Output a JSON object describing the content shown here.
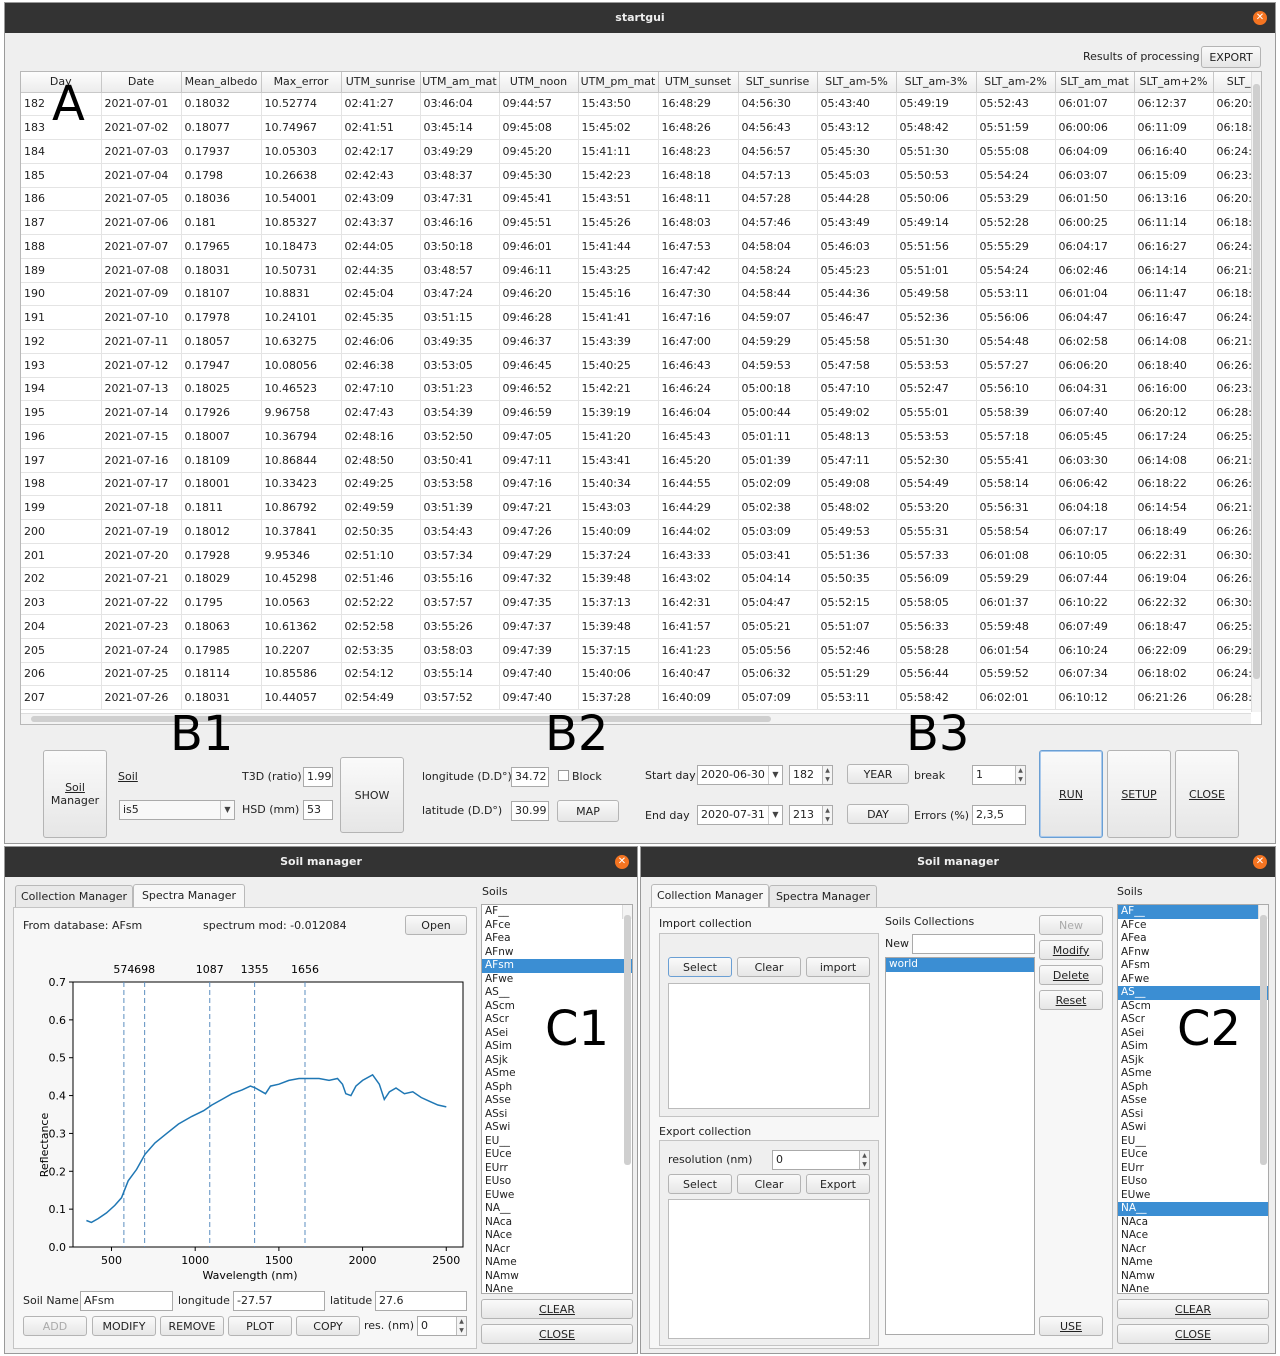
{
  "overlay_labels": {
    "a": "A",
    "b1": "B1",
    "b2": "B2",
    "b3": "B3",
    "c1": "C1",
    "c2": "C2"
  },
  "main": {
    "title": "startgui",
    "results_label": "Results of processing",
    "export_btn": "EXPORT",
    "columns": [
      "Day",
      "Date",
      "Mean_albedo",
      "Max_error",
      "UTM_sunrise",
      "UTM_am_mat",
      "UTM_noon",
      "UTM_pm_mat",
      "UTM_sunset",
      "SLT_sunrise",
      "SLT_am-5%",
      "SLT_am-3%",
      "SLT_am-2%",
      "SLT_am_mat",
      "SLT_am+2%",
      "SLT_a"
    ],
    "rows": [
      [
        "182",
        "2021-07-01",
        "0.18032",
        "10.52774",
        "02:41:27",
        "03:46:04",
        "09:44:57",
        "15:43:50",
        "16:48:29",
        "04:56:30",
        "05:43:40",
        "05:49:19",
        "05:52:43",
        "06:01:07",
        "06:12:37",
        "06:20:"
      ],
      [
        "183",
        "2021-07-02",
        "0.18077",
        "10.74967",
        "02:41:51",
        "03:45:14",
        "09:45:08",
        "15:45:02",
        "16:48:26",
        "04:56:43",
        "05:43:12",
        "05:48:42",
        "05:51:59",
        "06:00:06",
        "06:11:09",
        "06:18:"
      ],
      [
        "184",
        "2021-07-03",
        "0.17937",
        "10.05303",
        "02:42:17",
        "03:49:29",
        "09:45:20",
        "15:41:11",
        "16:48:23",
        "04:56:57",
        "05:45:30",
        "05:51:30",
        "05:55:08",
        "06:04:09",
        "06:16:40",
        "06:24:"
      ],
      [
        "185",
        "2021-07-04",
        "0.1798",
        "10.26638",
        "02:42:43",
        "03:48:37",
        "09:45:30",
        "15:42:23",
        "16:48:18",
        "04:57:13",
        "05:45:03",
        "05:50:53",
        "05:54:24",
        "06:03:07",
        "06:15:09",
        "06:23:"
      ],
      [
        "186",
        "2021-07-05",
        "0.18036",
        "10.54001",
        "02:43:09",
        "03:47:31",
        "09:45:41",
        "15:43:51",
        "16:48:11",
        "04:57:28",
        "05:44:28",
        "05:50:06",
        "05:53:29",
        "06:01:50",
        "06:13:16",
        "06:20:"
      ],
      [
        "187",
        "2021-07-06",
        "0.181",
        "10.85327",
        "02:43:37",
        "03:46:16",
        "09:45:51",
        "15:45:26",
        "16:48:03",
        "04:57:46",
        "05:43:49",
        "05:49:14",
        "05:52:28",
        "06:00:25",
        "06:11:14",
        "06:18:"
      ],
      [
        "188",
        "2021-07-07",
        "0.17965",
        "10.18473",
        "02:44:05",
        "03:50:18",
        "09:46:01",
        "15:41:44",
        "16:47:53",
        "04:58:04",
        "05:46:03",
        "05:51:56",
        "05:55:29",
        "06:04:17",
        "06:16:27",
        "06:24:"
      ],
      [
        "189",
        "2021-07-08",
        "0.18031",
        "10.50731",
        "02:44:35",
        "03:48:57",
        "09:46:11",
        "15:43:25",
        "16:47:42",
        "04:58:24",
        "05:45:23",
        "05:51:01",
        "05:54:24",
        "06:02:46",
        "06:14:14",
        "06:21:"
      ],
      [
        "190",
        "2021-07-09",
        "0.18107",
        "10.8831",
        "02:45:04",
        "03:47:24",
        "09:46:20",
        "15:45:16",
        "16:47:30",
        "04:58:44",
        "05:44:36",
        "05:49:58",
        "05:53:11",
        "06:01:04",
        "06:11:47",
        "06:18:"
      ],
      [
        "191",
        "2021-07-10",
        "0.17978",
        "10.24101",
        "02:45:35",
        "03:51:15",
        "09:46:28",
        "15:41:41",
        "16:47:16",
        "04:59:07",
        "05:46:47",
        "05:52:36",
        "05:56:06",
        "06:04:47",
        "06:16:47",
        "06:24:"
      ],
      [
        "192",
        "2021-07-11",
        "0.18057",
        "10.63275",
        "02:46:06",
        "03:49:35",
        "09:46:37",
        "15:43:39",
        "16:47:00",
        "04:59:29",
        "05:45:58",
        "05:51:30",
        "05:54:48",
        "06:02:58",
        "06:14:08",
        "06:21:"
      ],
      [
        "193",
        "2021-07-12",
        "0.17947",
        "10.08056",
        "02:46:38",
        "03:53:05",
        "09:46:45",
        "15:40:25",
        "16:46:43",
        "04:59:53",
        "05:47:58",
        "05:53:53",
        "05:57:27",
        "06:06:20",
        "06:18:40",
        "06:26:"
      ],
      [
        "194",
        "2021-07-13",
        "0.18025",
        "10.46523",
        "02:47:10",
        "03:51:23",
        "09:46:52",
        "15:42:21",
        "16:46:24",
        "05:00:18",
        "05:47:10",
        "05:52:47",
        "05:56:10",
        "06:04:31",
        "06:16:00",
        "06:23:"
      ],
      [
        "195",
        "2021-07-14",
        "0.17926",
        "9.96758",
        "02:47:43",
        "03:54:39",
        "09:46:59",
        "15:39:19",
        "16:46:04",
        "05:00:44",
        "05:49:02",
        "05:55:01",
        "05:58:39",
        "06:07:40",
        "06:20:12",
        "06:28:"
      ],
      [
        "196",
        "2021-07-15",
        "0.18007",
        "10.36794",
        "02:48:16",
        "03:52:50",
        "09:47:05",
        "15:41:20",
        "16:45:43",
        "05:01:11",
        "05:48:13",
        "05:53:53",
        "05:57:18",
        "06:05:45",
        "06:17:24",
        "06:25:"
      ],
      [
        "197",
        "2021-07-16",
        "0.18109",
        "10.86844",
        "02:48:50",
        "03:50:41",
        "09:47:11",
        "15:43:41",
        "16:45:20",
        "05:01:39",
        "05:47:11",
        "05:52:30",
        "05:55:41",
        "06:03:30",
        "06:14:08",
        "06:21:"
      ],
      [
        "198",
        "2021-07-17",
        "0.18001",
        "10.33423",
        "02:49:25",
        "03:53:58",
        "09:47:16",
        "15:40:34",
        "16:44:55",
        "05:02:09",
        "05:49:08",
        "05:54:49",
        "05:58:14",
        "06:06:42",
        "06:18:22",
        "06:26:"
      ],
      [
        "199",
        "2021-07-18",
        "0.1811",
        "10.86792",
        "02:49:59",
        "03:51:39",
        "09:47:21",
        "15:43:03",
        "16:44:29",
        "05:02:38",
        "05:48:02",
        "05:53:20",
        "05:56:31",
        "06:04:18",
        "06:14:54",
        "06:21:"
      ],
      [
        "200",
        "2021-07-19",
        "0.18012",
        "10.37841",
        "02:50:35",
        "03:54:43",
        "09:47:26",
        "15:40:09",
        "16:44:02",
        "05:03:09",
        "05:49:53",
        "05:55:31",
        "05:58:54",
        "06:07:17",
        "06:18:49",
        "06:26:"
      ],
      [
        "201",
        "2021-07-20",
        "0.17928",
        "9.95346",
        "02:51:10",
        "03:57:34",
        "09:47:29",
        "15:37:24",
        "16:43:33",
        "05:03:41",
        "05:51:36",
        "05:57:33",
        "06:01:08",
        "06:10:05",
        "06:22:31",
        "06:30:"
      ],
      [
        "202",
        "2021-07-21",
        "0.18029",
        "10.45298",
        "02:51:46",
        "03:55:16",
        "09:47:32",
        "15:39:48",
        "16:43:02",
        "05:04:14",
        "05:50:35",
        "05:56:09",
        "05:59:29",
        "06:07:44",
        "06:19:04",
        "06:26:"
      ],
      [
        "203",
        "2021-07-22",
        "0.1795",
        "10.0563",
        "02:52:22",
        "03:57:57",
        "09:47:35",
        "15:37:13",
        "16:42:31",
        "05:04:47",
        "05:52:15",
        "05:58:05",
        "06:01:37",
        "06:10:22",
        "06:22:32",
        "06:30:"
      ],
      [
        "204",
        "2021-07-23",
        "0.18063",
        "10.61362",
        "02:52:58",
        "03:55:26",
        "09:47:37",
        "15:39:48",
        "16:41:57",
        "05:05:21",
        "05:51:07",
        "05:56:33",
        "05:59:48",
        "06:07:49",
        "06:18:47",
        "06:25:"
      ],
      [
        "205",
        "2021-07-24",
        "0.17985",
        "10.2207",
        "02:53:35",
        "03:58:03",
        "09:47:39",
        "15:37:15",
        "16:41:23",
        "05:05:56",
        "05:52:46",
        "05:58:28",
        "06:01:54",
        "06:10:24",
        "06:22:09",
        "06:29:"
      ],
      [
        "206",
        "2021-07-25",
        "0.18114",
        "10.85586",
        "02:54:12",
        "03:55:14",
        "09:47:40",
        "15:40:06",
        "16:40:47",
        "05:06:32",
        "05:51:29",
        "05:56:44",
        "05:59:52",
        "06:07:34",
        "06:18:02",
        "06:24:"
      ],
      [
        "207",
        "2021-07-26",
        "0.18031",
        "10.44057",
        "02:54:49",
        "03:57:52",
        "09:47:40",
        "15:37:28",
        "16:40:09",
        "05:07:09",
        "05:53:11",
        "05:58:42",
        "06:02:01",
        "06:10:12",
        "06:21:26",
        "06:28:"
      ]
    ],
    "b1": {
      "soil_manager_btn_l1": "Soil",
      "soil_manager_btn_l2": "Manager",
      "soil_label": "Soil",
      "soil_value": "is5",
      "t3d_label": "T3D (ratio)",
      "t3d_value": "1.99",
      "hsd_label": "HSD (mm)",
      "hsd_value": "53",
      "show_btn": "SHOW"
    },
    "b2": {
      "lon_label": "longitude (D.D°)",
      "lon_value": "34.72",
      "block_label": "Block",
      "lat_label": "latitude (D.D°)",
      "lat_value": "30.99",
      "map_btn": "MAP"
    },
    "b3": {
      "start_label": "Start day",
      "start_date": "2020-06-30",
      "start_doy": "182",
      "end_label": "End day",
      "end_date": "2020-07-31",
      "end_doy": "213",
      "year_btn": "YEAR",
      "day_btn": "DAY",
      "break_label": "break",
      "break_value": "1",
      "errors_label": "Errors (%)",
      "errors_value": "2,3,5",
      "run_btn": "RUN",
      "setup_btn": "SETUP",
      "close_btn": "CLOSE"
    }
  },
  "soil1": {
    "title": "Soil manager",
    "tab_collection": "Collection Manager",
    "tab_spectra": "Spectra Manager",
    "from_db": "From database: AFsm",
    "spectrum_mod": "spectrum mod: -0.012084",
    "open_btn": "Open",
    "soils_label": "Soils",
    "soil_name_label": "Soil Name",
    "soil_name_value": "AFsm",
    "lon_label": "longitude",
    "lon_value": "-27.57",
    "lat_label": "latitude",
    "lat_value": "27.6",
    "add_btn": "ADD",
    "modify_btn": "MODIFY",
    "remove_btn": "REMOVE",
    "plot_btn": "PLOT",
    "copy_btn": "COPY",
    "res_label": "res. (nm)",
    "res_value": "0",
    "clear_btn": "CLEAR",
    "close_btn": "CLOSE",
    "soils": [
      "AF__",
      "AFce",
      "AFea",
      "AFnw",
      "AFsm",
      "AFwe",
      "AS__",
      "AScm",
      "AScr",
      "ASei",
      "ASim",
      "ASjk",
      "ASme",
      "ASph",
      "ASse",
      "ASsi",
      "ASwi",
      "EU__",
      "EUce",
      "EUrr",
      "EUso",
      "EUwe",
      "NA__",
      "NAca",
      "NAce",
      "NAcr",
      "NAme",
      "NAmw",
      "NAne"
    ],
    "selected": [
      "AFsm"
    ]
  },
  "soil2": {
    "title": "Soil manager",
    "tab_collection": "Collection Manager",
    "tab_spectra": "Spectra Manager",
    "import_title": "Import collection",
    "select_btn": "Select",
    "clear_btn": "Clear",
    "import_btn": "import",
    "export_title": "Export collection",
    "resolution_label": "resolution (nm)",
    "resolution_value": "0",
    "export_select_btn": "Select",
    "export_clear_btn": "Clear",
    "export_btn": "Export",
    "collections_title": "Soils Collections",
    "new_label": "New",
    "collections": [
      "world"
    ],
    "new_btn": "New",
    "modify_btn": "Modify",
    "delete_btn": "Delete",
    "reset_btn": "Reset",
    "use_btn": "USE",
    "soils_label": "Soils",
    "soils": [
      "AF__",
      "AFce",
      "AFea",
      "AFnw",
      "AFsm",
      "AFwe",
      "AS__",
      "AScm",
      "AScr",
      "ASei",
      "ASim",
      "ASjk",
      "ASme",
      "ASph",
      "ASse",
      "ASsi",
      "ASwi",
      "EU__",
      "EUce",
      "EUrr",
      "EUso",
      "EUwe",
      "NA__",
      "NAca",
      "NAce",
      "NAcr",
      "NAme",
      "NAmw",
      "NAne"
    ],
    "selected": [
      "AF__",
      "AS__",
      "NA__"
    ],
    "clear_list_btn": "CLEAR",
    "close_btn": "CLOSE"
  },
  "chart_data": {
    "type": "line",
    "xlabel": "Wavelength (nm)",
    "ylabel": "Reflectance",
    "xlim": [
      270,
      2600
    ],
    "ylim": [
      0,
      0.7
    ],
    "xticks": [
      500,
      1000,
      1500,
      2000,
      2500
    ],
    "yticks": [
      0.0,
      0.1,
      0.2,
      0.3,
      0.4,
      0.5,
      0.6,
      0.7
    ],
    "vlines": [
      574,
      698,
      1087,
      1355,
      1656
    ],
    "vline_labels": [
      "574",
      "698",
      "1087",
      "1355",
      "1656"
    ],
    "series": [
      {
        "color": "#1f77b4",
        "x": [
          350,
          380,
          420,
          470,
          520,
          560,
          600,
          650,
          700,
          760,
          830,
          900,
          980,
          1050,
          1100,
          1160,
          1220,
          1280,
          1330,
          1360,
          1400,
          1420,
          1450,
          1500,
          1560,
          1620,
          1680,
          1740,
          1800,
          1850,
          1880,
          1900,
          1930,
          1960,
          2000,
          2060,
          2100,
          2130,
          2160,
          2200,
          2250,
          2300,
          2350,
          2400,
          2450,
          2500
        ],
        "y": [
          0.07,
          0.065,
          0.075,
          0.09,
          0.11,
          0.13,
          0.175,
          0.205,
          0.245,
          0.275,
          0.3,
          0.325,
          0.345,
          0.36,
          0.375,
          0.39,
          0.405,
          0.415,
          0.425,
          0.42,
          0.41,
          0.405,
          0.425,
          0.43,
          0.44,
          0.445,
          0.445,
          0.445,
          0.44,
          0.445,
          0.43,
          0.405,
          0.4,
          0.425,
          0.44,
          0.455,
          0.43,
          0.39,
          0.41,
          0.42,
          0.405,
          0.41,
          0.395,
          0.385,
          0.375,
          0.37
        ]
      }
    ]
  }
}
